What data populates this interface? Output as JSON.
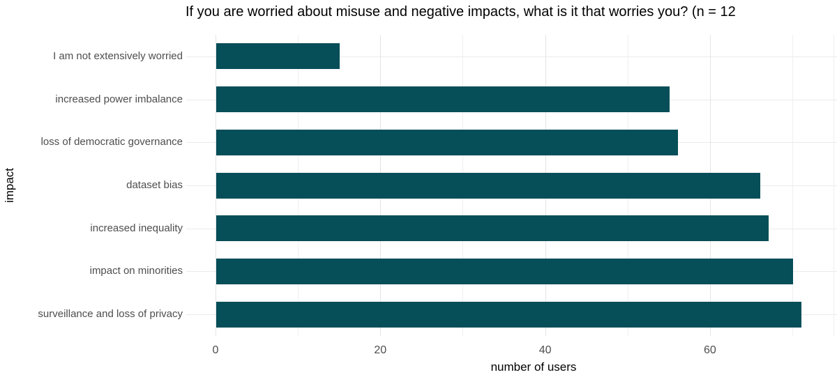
{
  "chart_data": {
    "type": "bar",
    "orientation": "horizontal",
    "title": "If you are worried about misuse and negative impacts, what is it that worries you? (n = 12",
    "title_truncated": true,
    "xlabel": "number of users",
    "ylabel": "impact",
    "categories": [
      "I am not extensively worried",
      "increased power imbalance",
      "loss of democratic governance",
      "dataset bias",
      "increased inequality",
      "impact on minorities",
      "surveillance and loss of privacy"
    ],
    "values": [
      15,
      55,
      56,
      66,
      67,
      70,
      71
    ],
    "x_ticks": [
      0,
      20,
      40,
      60
    ],
    "x_minor_ticks": [
      10,
      30,
      50,
      70,
      75
    ],
    "xlim": [
      0,
      75
    ],
    "grid": true,
    "legend": "none",
    "bar_color": "#064e58",
    "background_color": "#ffffff",
    "gridline_color": "#e9e9e9",
    "tick_label_color": "#4d4d4d",
    "text_color": "#000000"
  }
}
